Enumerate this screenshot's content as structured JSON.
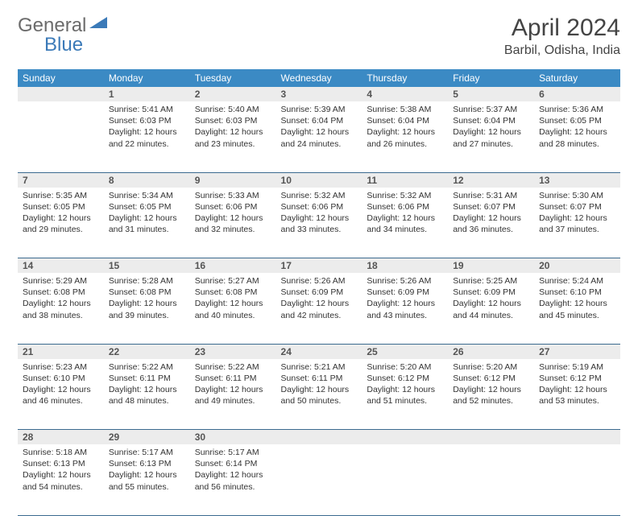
{
  "logo": {
    "general": "General",
    "blue": "Blue"
  },
  "title": "April 2024",
  "location": "Barbil, Odisha, India",
  "colors": {
    "header_bg": "#3b8ac4",
    "header_text": "#ffffff",
    "daynum_bg": "#ececec",
    "border": "#3b6a8f",
    "logo_gray": "#6b6b6b",
    "logo_blue": "#3b7ab8"
  },
  "weekdays": [
    "Sunday",
    "Monday",
    "Tuesday",
    "Wednesday",
    "Thursday",
    "Friday",
    "Saturday"
  ],
  "weeks": [
    {
      "nums": [
        "",
        "1",
        "2",
        "3",
        "4",
        "5",
        "6"
      ],
      "cells": [
        null,
        {
          "sr": "Sunrise: 5:41 AM",
          "ss": "Sunset: 6:03 PM",
          "d1": "Daylight: 12 hours",
          "d2": "and 22 minutes."
        },
        {
          "sr": "Sunrise: 5:40 AM",
          "ss": "Sunset: 6:03 PM",
          "d1": "Daylight: 12 hours",
          "d2": "and 23 minutes."
        },
        {
          "sr": "Sunrise: 5:39 AM",
          "ss": "Sunset: 6:04 PM",
          "d1": "Daylight: 12 hours",
          "d2": "and 24 minutes."
        },
        {
          "sr": "Sunrise: 5:38 AM",
          "ss": "Sunset: 6:04 PM",
          "d1": "Daylight: 12 hours",
          "d2": "and 26 minutes."
        },
        {
          "sr": "Sunrise: 5:37 AM",
          "ss": "Sunset: 6:04 PM",
          "d1": "Daylight: 12 hours",
          "d2": "and 27 minutes."
        },
        {
          "sr": "Sunrise: 5:36 AM",
          "ss": "Sunset: 6:05 PM",
          "d1": "Daylight: 12 hours",
          "d2": "and 28 minutes."
        }
      ]
    },
    {
      "nums": [
        "7",
        "8",
        "9",
        "10",
        "11",
        "12",
        "13"
      ],
      "cells": [
        {
          "sr": "Sunrise: 5:35 AM",
          "ss": "Sunset: 6:05 PM",
          "d1": "Daylight: 12 hours",
          "d2": "and 29 minutes."
        },
        {
          "sr": "Sunrise: 5:34 AM",
          "ss": "Sunset: 6:05 PM",
          "d1": "Daylight: 12 hours",
          "d2": "and 31 minutes."
        },
        {
          "sr": "Sunrise: 5:33 AM",
          "ss": "Sunset: 6:06 PM",
          "d1": "Daylight: 12 hours",
          "d2": "and 32 minutes."
        },
        {
          "sr": "Sunrise: 5:32 AM",
          "ss": "Sunset: 6:06 PM",
          "d1": "Daylight: 12 hours",
          "d2": "and 33 minutes."
        },
        {
          "sr": "Sunrise: 5:32 AM",
          "ss": "Sunset: 6:06 PM",
          "d1": "Daylight: 12 hours",
          "d2": "and 34 minutes."
        },
        {
          "sr": "Sunrise: 5:31 AM",
          "ss": "Sunset: 6:07 PM",
          "d1": "Daylight: 12 hours",
          "d2": "and 36 minutes."
        },
        {
          "sr": "Sunrise: 5:30 AM",
          "ss": "Sunset: 6:07 PM",
          "d1": "Daylight: 12 hours",
          "d2": "and 37 minutes."
        }
      ]
    },
    {
      "nums": [
        "14",
        "15",
        "16",
        "17",
        "18",
        "19",
        "20"
      ],
      "cells": [
        {
          "sr": "Sunrise: 5:29 AM",
          "ss": "Sunset: 6:08 PM",
          "d1": "Daylight: 12 hours",
          "d2": "and 38 minutes."
        },
        {
          "sr": "Sunrise: 5:28 AM",
          "ss": "Sunset: 6:08 PM",
          "d1": "Daylight: 12 hours",
          "d2": "and 39 minutes."
        },
        {
          "sr": "Sunrise: 5:27 AM",
          "ss": "Sunset: 6:08 PM",
          "d1": "Daylight: 12 hours",
          "d2": "and 40 minutes."
        },
        {
          "sr": "Sunrise: 5:26 AM",
          "ss": "Sunset: 6:09 PM",
          "d1": "Daylight: 12 hours",
          "d2": "and 42 minutes."
        },
        {
          "sr": "Sunrise: 5:26 AM",
          "ss": "Sunset: 6:09 PM",
          "d1": "Daylight: 12 hours",
          "d2": "and 43 minutes."
        },
        {
          "sr": "Sunrise: 5:25 AM",
          "ss": "Sunset: 6:09 PM",
          "d1": "Daylight: 12 hours",
          "d2": "and 44 minutes."
        },
        {
          "sr": "Sunrise: 5:24 AM",
          "ss": "Sunset: 6:10 PM",
          "d1": "Daylight: 12 hours",
          "d2": "and 45 minutes."
        }
      ]
    },
    {
      "nums": [
        "21",
        "22",
        "23",
        "24",
        "25",
        "26",
        "27"
      ],
      "cells": [
        {
          "sr": "Sunrise: 5:23 AM",
          "ss": "Sunset: 6:10 PM",
          "d1": "Daylight: 12 hours",
          "d2": "and 46 minutes."
        },
        {
          "sr": "Sunrise: 5:22 AM",
          "ss": "Sunset: 6:11 PM",
          "d1": "Daylight: 12 hours",
          "d2": "and 48 minutes."
        },
        {
          "sr": "Sunrise: 5:22 AM",
          "ss": "Sunset: 6:11 PM",
          "d1": "Daylight: 12 hours",
          "d2": "and 49 minutes."
        },
        {
          "sr": "Sunrise: 5:21 AM",
          "ss": "Sunset: 6:11 PM",
          "d1": "Daylight: 12 hours",
          "d2": "and 50 minutes."
        },
        {
          "sr": "Sunrise: 5:20 AM",
          "ss": "Sunset: 6:12 PM",
          "d1": "Daylight: 12 hours",
          "d2": "and 51 minutes."
        },
        {
          "sr": "Sunrise: 5:20 AM",
          "ss": "Sunset: 6:12 PM",
          "d1": "Daylight: 12 hours",
          "d2": "and 52 minutes."
        },
        {
          "sr": "Sunrise: 5:19 AM",
          "ss": "Sunset: 6:12 PM",
          "d1": "Daylight: 12 hours",
          "d2": "and 53 minutes."
        }
      ]
    },
    {
      "nums": [
        "28",
        "29",
        "30",
        "",
        "",
        "",
        ""
      ],
      "cells": [
        {
          "sr": "Sunrise: 5:18 AM",
          "ss": "Sunset: 6:13 PM",
          "d1": "Daylight: 12 hours",
          "d2": "and 54 minutes."
        },
        {
          "sr": "Sunrise: 5:17 AM",
          "ss": "Sunset: 6:13 PM",
          "d1": "Daylight: 12 hours",
          "d2": "and 55 minutes."
        },
        {
          "sr": "Sunrise: 5:17 AM",
          "ss": "Sunset: 6:14 PM",
          "d1": "Daylight: 12 hours",
          "d2": "and 56 minutes."
        },
        null,
        null,
        null,
        null
      ]
    }
  ]
}
